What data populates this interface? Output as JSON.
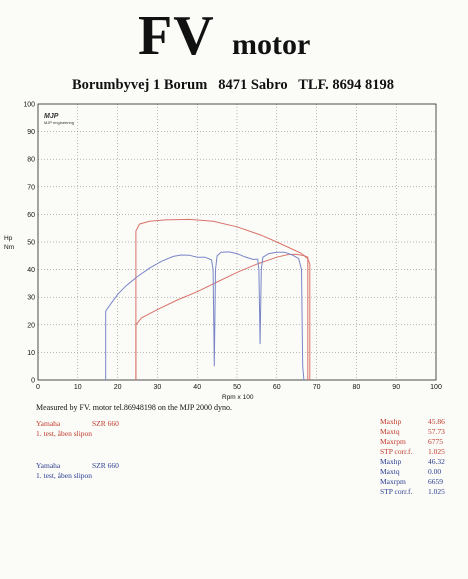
{
  "header": {
    "brand_main": "FV",
    "brand_sub": "motor",
    "address": "Borumbyvej 1 Borum   8471 Sabro   TLF. 8694 8198"
  },
  "logo": {
    "mark": "MJP",
    "text": "MJP engineering"
  },
  "chart_data": {
    "type": "line",
    "xlabel": "Rpm x 100",
    "ylabel": "Hp\nNm",
    "xlim": [
      0,
      100
    ],
    "ylim": [
      0,
      100
    ],
    "xticks": [
      0,
      10,
      20,
      30,
      40,
      50,
      60,
      70,
      80,
      90,
      100
    ],
    "yticks": [
      0,
      10,
      20,
      30,
      40,
      50,
      60,
      70,
      80,
      90,
      100
    ],
    "grid": true,
    "series": [
      {
        "color": "#d9736a",
        "points": [
          [
            24.6,
            0
          ],
          [
            24.6,
            20
          ],
          [
            26,
            22.5
          ],
          [
            30,
            25.5
          ],
          [
            35,
            29
          ],
          [
            40,
            32
          ],
          [
            45,
            35.5
          ],
          [
            50,
            39
          ],
          [
            55,
            42
          ],
          [
            60,
            44.5
          ],
          [
            63,
            45.5
          ],
          [
            65,
            45.5
          ],
          [
            67,
            45
          ],
          [
            67.8,
            44.5
          ],
          [
            67.8,
            0
          ]
        ]
      },
      {
        "color": "#d9736a",
        "points": [
          [
            24.6,
            0
          ],
          [
            24.6,
            54
          ],
          [
            25.5,
            56.5
          ],
          [
            28,
            57.5
          ],
          [
            32,
            58
          ],
          [
            38,
            58.2
          ],
          [
            44,
            57.5
          ],
          [
            50,
            55.5
          ],
          [
            56,
            52.5
          ],
          [
            60,
            50
          ],
          [
            63,
            48
          ],
          [
            66,
            46
          ],
          [
            67.8,
            44
          ],
          [
            68.3,
            42
          ],
          [
            68.3,
            0
          ]
        ]
      },
      {
        "color": "#7a86c8",
        "points": [
          [
            17,
            0
          ],
          [
            17,
            25
          ],
          [
            18.5,
            28
          ],
          [
            20,
            31
          ],
          [
            22,
            34
          ],
          [
            25,
            37.5
          ],
          [
            28,
            40.5
          ],
          [
            31,
            43
          ],
          [
            34,
            44.8
          ],
          [
            36,
            45.3
          ],
          [
            38,
            45.2
          ],
          [
            40,
            44.5
          ],
          [
            42,
            44.5
          ],
          [
            43.6,
            43.5
          ],
          [
            44,
            40
          ],
          [
            44.3,
            5
          ],
          [
            44.6,
            40
          ],
          [
            45,
            45
          ],
          [
            46,
            46.3
          ],
          [
            48,
            46.4
          ],
          [
            50,
            45.8
          ],
          [
            52,
            44.6
          ],
          [
            54,
            43.7
          ],
          [
            55.2,
            43.8
          ],
          [
            55.5,
            40
          ],
          [
            55.8,
            13
          ],
          [
            56.1,
            40
          ],
          [
            56.5,
            44.5
          ],
          [
            58,
            45.8
          ],
          [
            60,
            46.3
          ],
          [
            62,
            46.3
          ],
          [
            64,
            45.2
          ],
          [
            65.5,
            44
          ],
          [
            66.2,
            40
          ],
          [
            66.5,
            5
          ],
          [
            66.8,
            0
          ]
        ]
      }
    ]
  },
  "footer": {
    "note": "Measured by FV. motor tel.86948198 on the MJP 2000 dyno."
  },
  "run1": {
    "make": "Yamaha",
    "model": "SZR 660",
    "desc": "1. test, åben slipon",
    "stats": [
      {
        "key": "Maxhp",
        "value": "45.86"
      },
      {
        "key": "Maxtq",
        "value": "57.73"
      },
      {
        "key": "Maxrpm",
        "value": "6775"
      },
      {
        "key": "STP corr.f.",
        "value": "1.025"
      }
    ],
    "color": "#c0392b"
  },
  "run2": {
    "make": "Yamaha",
    "model": "SZR 660",
    "desc": "1. test, åben slipon",
    "stats": [
      {
        "key": "Maxhp",
        "value": "46.32"
      },
      {
        "key": "Maxtq",
        "value": "0.00"
      },
      {
        "key": "Maxrpm",
        "value": "6659"
      },
      {
        "key": "STP corr.f.",
        "value": "1.025"
      }
    ],
    "color": "#2a3d8f"
  }
}
